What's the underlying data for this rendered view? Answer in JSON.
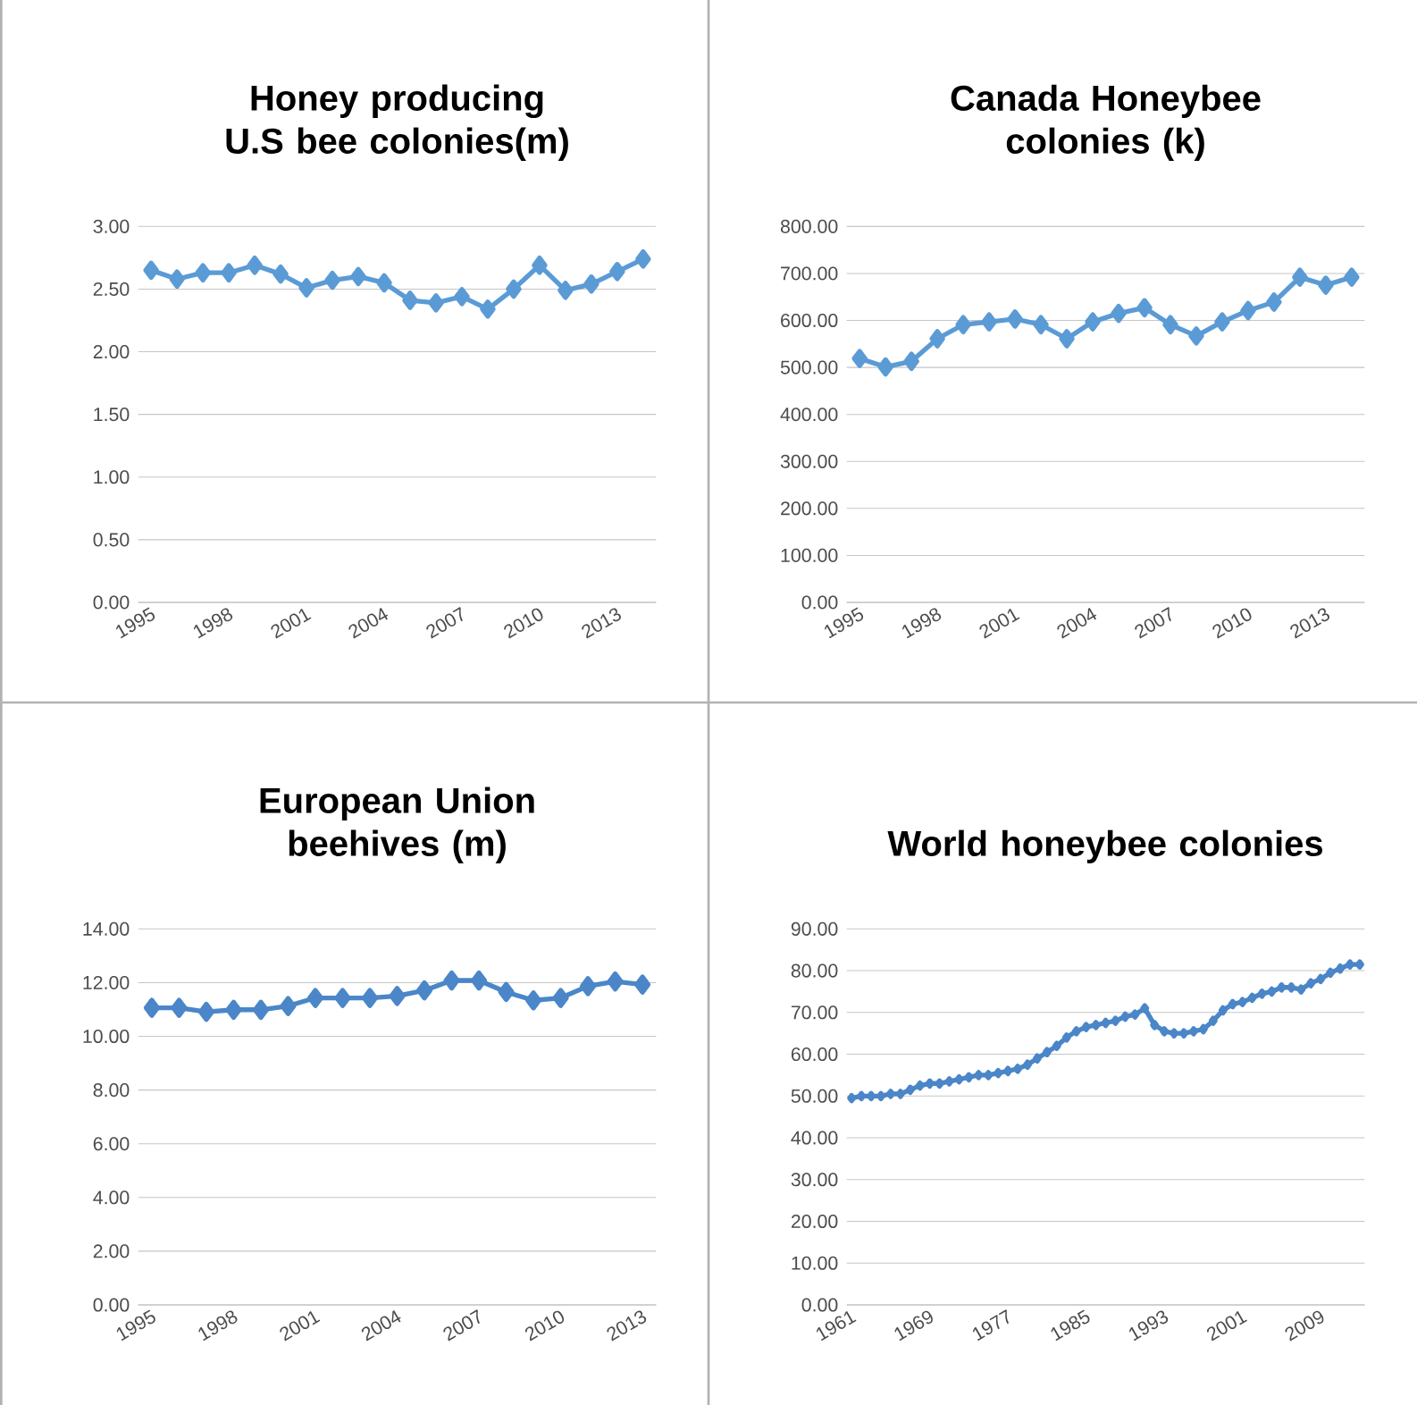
{
  "chart_data": [
    {
      "type": "line",
      "title": "Honey producing U.S bee colonies(m)",
      "color": "#5b9bd5",
      "marker": "diamond",
      "grid": "y",
      "categories": [
        "1995",
        null,
        null,
        "1998",
        null,
        null,
        "2001",
        null,
        null,
        "2004",
        null,
        null,
        "2007",
        null,
        null,
        "2010",
        null,
        null,
        "2013",
        null
      ],
      "values": [
        2.65,
        2.58,
        2.63,
        2.63,
        2.69,
        2.62,
        2.51,
        2.57,
        2.6,
        2.55,
        2.41,
        2.39,
        2.44,
        2.34,
        2.5,
        2.69,
        2.49,
        2.54,
        2.64,
        2.74
      ],
      "ylim": [
        0,
        3
      ],
      "yticks": [
        {
          "value": 0,
          "label": "0.00"
        },
        {
          "value": 0.5,
          "label": "0.50"
        },
        {
          "value": 1,
          "label": "1.00"
        },
        {
          "value": 1.5,
          "label": "1.50"
        },
        {
          "value": 2,
          "label": "2.00"
        },
        {
          "value": 2.5,
          "label": "2.50"
        },
        {
          "value": 3,
          "label": "3.00"
        }
      ]
    },
    {
      "type": "line",
      "title": "Canada Honeybee colonies (k)",
      "color": "#5b9bd5",
      "marker": "diamond",
      "grid": "y",
      "categories": [
        "1995",
        null,
        null,
        "1998",
        null,
        null,
        "2001",
        null,
        null,
        "2004",
        null,
        null,
        "2007",
        null,
        null,
        "2010",
        null,
        null,
        "2013",
        null
      ],
      "values": [
        519,
        501,
        513,
        561,
        591,
        597,
        603,
        591,
        561,
        597,
        615,
        627,
        591,
        567,
        597,
        621,
        639,
        692,
        675,
        692
      ],
      "ylim": [
        0,
        800
      ],
      "yticks": [
        {
          "value": 0,
          "label": "0.00"
        },
        {
          "value": 100,
          "label": "100.00"
        },
        {
          "value": 200,
          "label": "200.00"
        },
        {
          "value": 300,
          "label": "300.00"
        },
        {
          "value": 400,
          "label": "400.00"
        },
        {
          "value": 500,
          "label": "500.00"
        },
        {
          "value": 600,
          "label": "600.00"
        },
        {
          "value": 700,
          "label": "700.00"
        },
        {
          "value": 800,
          "label": "800.00"
        }
      ]
    },
    {
      "type": "line",
      "title": "European Union beehives (m)",
      "color": "#4a86c8",
      "marker": "diamond",
      "grid": "y",
      "categories": [
        "1995",
        null,
        null,
        "1998",
        null,
        null,
        "2001",
        null,
        null,
        "2004",
        null,
        null,
        "2007",
        null,
        null,
        "2010",
        null,
        null,
        "2013"
      ],
      "values": [
        11.06,
        11.06,
        10.91,
        10.99,
        10.99,
        11.13,
        11.43,
        11.43,
        11.43,
        11.5,
        11.71,
        12.08,
        12.08,
        11.65,
        11.34,
        11.43,
        11.87,
        12.04,
        11.93
      ],
      "ylim": [
        0,
        14
      ],
      "yticks": [
        {
          "value": 0,
          "label": "0.00"
        },
        {
          "value": 2,
          "label": "2.00"
        },
        {
          "value": 4,
          "label": "4.00"
        },
        {
          "value": 6,
          "label": "6.00"
        },
        {
          "value": 8,
          "label": "8.00"
        },
        {
          "value": 10,
          "label": "10.00"
        },
        {
          "value": 12,
          "label": "12.00"
        },
        {
          "value": 14,
          "label": "14.00"
        }
      ]
    },
    {
      "type": "line",
      "title": "World honeybee colonies",
      "color": "#4a86c8",
      "marker": "diamond",
      "grid": "y",
      "categories": [
        "1961",
        null,
        null,
        null,
        null,
        null,
        null,
        null,
        "1969",
        null,
        null,
        null,
        null,
        null,
        null,
        null,
        "1977",
        null,
        null,
        null,
        null,
        null,
        null,
        null,
        "1985",
        null,
        null,
        null,
        null,
        null,
        null,
        null,
        "1993",
        null,
        null,
        null,
        null,
        null,
        null,
        null,
        "2001",
        null,
        null,
        null,
        null,
        null,
        null,
        null,
        "2009",
        null,
        null,
        null,
        null
      ],
      "values": [
        49.5,
        50,
        50,
        50,
        50.5,
        50.5,
        51.5,
        52.5,
        53,
        53,
        53.5,
        54,
        54.5,
        55,
        55,
        55.5,
        56,
        56.5,
        57.5,
        59,
        60.5,
        62,
        64,
        65.5,
        66.5,
        67,
        67.5,
        68,
        69,
        69.5,
        71,
        67,
        65.5,
        65,
        65,
        65.5,
        66,
        68,
        70.5,
        72,
        72.5,
        73.5,
        74.5,
        75,
        76,
        76,
        75.5,
        77,
        78,
        79.5,
        80.5,
        81.5,
        81.5
      ],
      "ylim": [
        0,
        90
      ],
      "yticks": [
        {
          "value": 0,
          "label": "0.00"
        },
        {
          "value": 10,
          "label": "10.00"
        },
        {
          "value": 20,
          "label": "20.00"
        },
        {
          "value": 30,
          "label": "30.00"
        },
        {
          "value": 40,
          "label": "40.00"
        },
        {
          "value": 50,
          "label": "50.00"
        },
        {
          "value": 60,
          "label": "60.00"
        },
        {
          "value": 70,
          "label": "70.00"
        },
        {
          "value": 80,
          "label": "80.00"
        },
        {
          "value": 90,
          "label": "90.00"
        }
      ]
    }
  ]
}
